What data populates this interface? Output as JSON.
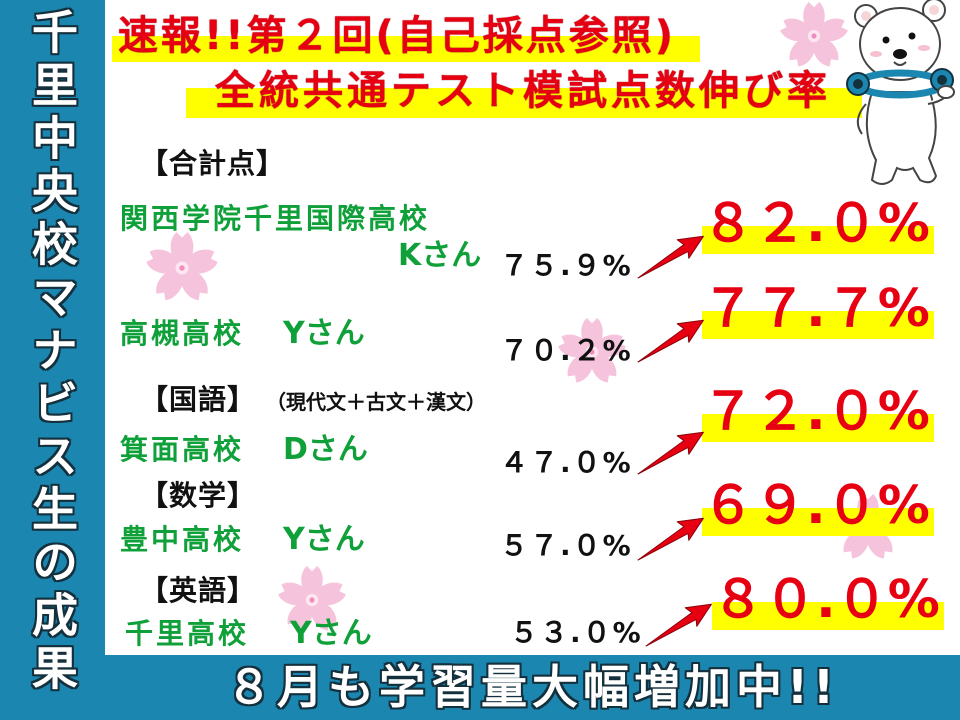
{
  "sidebar": {
    "title": "千里中央校マナビス生の成果"
  },
  "header": {
    "line1": "速報!!第２回(自己採点参照)",
    "line2": "全統共通テスト模試点数伸び率"
  },
  "sections": [
    {
      "heading": "【合計点】",
      "results": [
        {
          "school": "関西学院千里国際高校",
          "student": "Kさん",
          "before": "７５.９%",
          "after": "８２.０%"
        },
        {
          "school": "高槻高校",
          "student": "Yさん",
          "before": "７０.２%",
          "after": "７７.７%"
        }
      ]
    },
    {
      "heading": "【国語】",
      "note": "（現代文＋古文＋漢文）",
      "results": [
        {
          "school": "箕面高校",
          "student": "Dさん",
          "before": "４７.０%",
          "after": "７２.０%"
        }
      ]
    },
    {
      "heading": "【数学】",
      "results": [
        {
          "school": "豊中高校",
          "student": "Yさん",
          "before": "５７.０%",
          "after": "６９.０%"
        }
      ]
    },
    {
      "heading": "【英語】",
      "results": [
        {
          "school": "千里高校",
          "student": "Yさん",
          "before": "５３.０%",
          "after": "８０.０%"
        }
      ]
    }
  ],
  "footer": {
    "text": "８月も学習量大幅増加中!!"
  },
  "colors": {
    "accent": "#1b87b1",
    "red": "#e60012",
    "hl": "#ffff00",
    "green": "#10a03a",
    "dark": "#111111",
    "sakura": "#f6c3dc"
  },
  "icons": {
    "mascot": "polar-bear-mascot",
    "decoration": "sakura-flower",
    "arrow": "red-arrow-up-right"
  }
}
